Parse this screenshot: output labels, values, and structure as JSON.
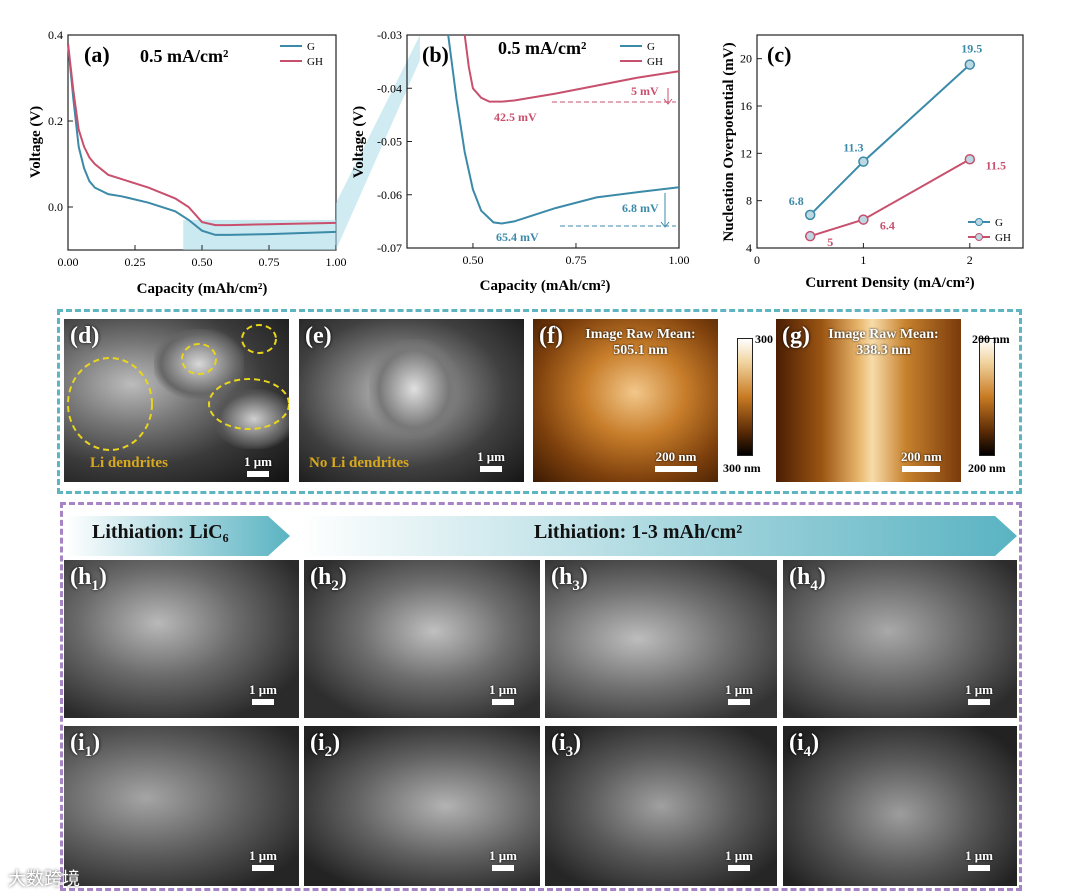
{
  "chart_data": [
    {
      "panel": "(a)",
      "type": "line",
      "annotation": "0.5 mA/cm²",
      "xlabel": "Capacity (mAh/cm²)",
      "ylabel": "Voltage (V)",
      "xlim": [
        0,
        1.0
      ],
      "ylim": [
        -0.1,
        0.4
      ],
      "xticks": [
        "0.00",
        "0.25",
        "0.50",
        "0.75",
        "1.00"
      ],
      "yticks": [
        "0.4",
        "0.2",
        "0.0"
      ],
      "legend_position": "top-right",
      "series": [
        {
          "name": "G",
          "color": "#3b8aa8",
          "x": [
            0.0,
            0.02,
            0.04,
            0.06,
            0.08,
            0.1,
            0.15,
            0.2,
            0.3,
            0.4,
            0.45,
            0.5,
            0.55,
            0.6,
            0.75,
            1.0
          ],
          "y": [
            0.38,
            0.25,
            0.14,
            0.09,
            0.06,
            0.045,
            0.03,
            0.025,
            0.01,
            -0.01,
            -0.03,
            -0.055,
            -0.065,
            -0.065,
            -0.063,
            -0.058
          ]
        },
        {
          "name": "GH",
          "color": "#c8506d",
          "x": [
            0.0,
            0.02,
            0.04,
            0.06,
            0.08,
            0.1,
            0.15,
            0.2,
            0.3,
            0.4,
            0.45,
            0.5,
            0.55,
            0.6,
            0.75,
            1.0
          ],
          "y": [
            0.38,
            0.27,
            0.18,
            0.14,
            0.115,
            0.1,
            0.075,
            0.065,
            0.045,
            0.02,
            0.0,
            -0.035,
            -0.042,
            -0.042,
            -0.04,
            -0.037
          ]
        }
      ]
    },
    {
      "panel": "(b)",
      "type": "line",
      "annotation": "0.5 mA/cm²",
      "xlabel": "Capacity (mAh/cm²)",
      "ylabel": "Voltage (V)",
      "xlim": [
        0.34,
        1.0
      ],
      "ylim": [
        -0.07,
        -0.03
      ],
      "xticks": [
        "0.50",
        "0.75",
        "1.00"
      ],
      "yticks": [
        "-0.03",
        "-0.04",
        "-0.05",
        "-0.06",
        "-0.07"
      ],
      "legend_position": "top-right",
      "labels": [
        "42.5 mV",
        "5 mV",
        "65.4 mV",
        "6.8 mV"
      ],
      "series": [
        {
          "name": "G",
          "color": "#3b8aa8",
          "x": [
            0.44,
            0.46,
            0.48,
            0.5,
            0.52,
            0.55,
            0.57,
            0.6,
            0.7,
            0.8,
            0.9,
            1.0
          ],
          "y": [
            -0.03,
            -0.042,
            -0.052,
            -0.059,
            -0.063,
            -0.0652,
            -0.0654,
            -0.065,
            -0.0625,
            -0.0605,
            -0.0595,
            -0.0586
          ]
        },
        {
          "name": "GH",
          "color": "#c8506d",
          "x": [
            0.48,
            0.49,
            0.5,
            0.52,
            0.54,
            0.57,
            0.6,
            0.7,
            0.8,
            0.9,
            1.0
          ],
          "y": [
            -0.03,
            -0.036,
            -0.04,
            -0.0418,
            -0.0425,
            -0.0425,
            -0.0423,
            -0.041,
            -0.0395,
            -0.038,
            -0.0368
          ]
        }
      ]
    },
    {
      "panel": "(c)",
      "type": "line",
      "xlabel": "Current Density (mA/cm²)",
      "ylabel": "Nucleation Overpotential (mV)",
      "xlim": [
        0,
        2.5
      ],
      "ylim": [
        4,
        22
      ],
      "xticks": [
        "0",
        "1",
        "2"
      ],
      "yticks": [
        "4",
        "8",
        "12",
        "16",
        "20"
      ],
      "legend_position": "bottom-right",
      "series": [
        {
          "name": "G",
          "color": "#3b8aa8",
          "x": [
            0.5,
            1,
            2
          ],
          "y": [
            6.8,
            11.3,
            19.5
          ],
          "labels": [
            "6.8",
            "11.3",
            "19.5"
          ]
        },
        {
          "name": "GH",
          "color": "#c8506d",
          "x": [
            0.5,
            1,
            2
          ],
          "y": [
            5,
            6.4,
            11.5
          ],
          "labels": [
            "5",
            "6.4",
            "11.5"
          ]
        }
      ]
    }
  ],
  "panels": {
    "d": {
      "label": "(d)",
      "note": "Li dendrites",
      "scale": "1 μm"
    },
    "e": {
      "label": "(e)",
      "note": "No Li dendrites",
      "scale": "1 μm"
    },
    "f": {
      "label": "(f)",
      "title_line1": "Image Raw Mean:",
      "title_line2": "505.1 nm",
      "scale": "200 nm",
      "cbar_top": "300 nm",
      "cbar_bottom": "300 nm"
    },
    "g": {
      "label": "(g)",
      "title_line1": "Image Raw Mean:",
      "title_line2": "338.3 nm",
      "scale": "200 nm",
      "cbar_top": "200 nm",
      "cbar_bottom": "200 nm"
    }
  },
  "arrows": {
    "left": "Lithiation: LiC₆",
    "right": "Lithiation: 1-3 mAh/cm²"
  },
  "sem_rows": [
    {
      "prefix": "h",
      "tiles": [
        "1",
        "2",
        "3",
        "4"
      ],
      "scale": "1 μm"
    },
    {
      "prefix": "i",
      "tiles": [
        "1",
        "2",
        "3",
        "4"
      ],
      "scale": "1 μm"
    }
  ],
  "watermark": "大数跨境",
  "colors": {
    "G": "#3b8aa8",
    "GH": "#c8506d",
    "teal_border": "#5fb4c2",
    "purple_border": "#a684c6"
  }
}
